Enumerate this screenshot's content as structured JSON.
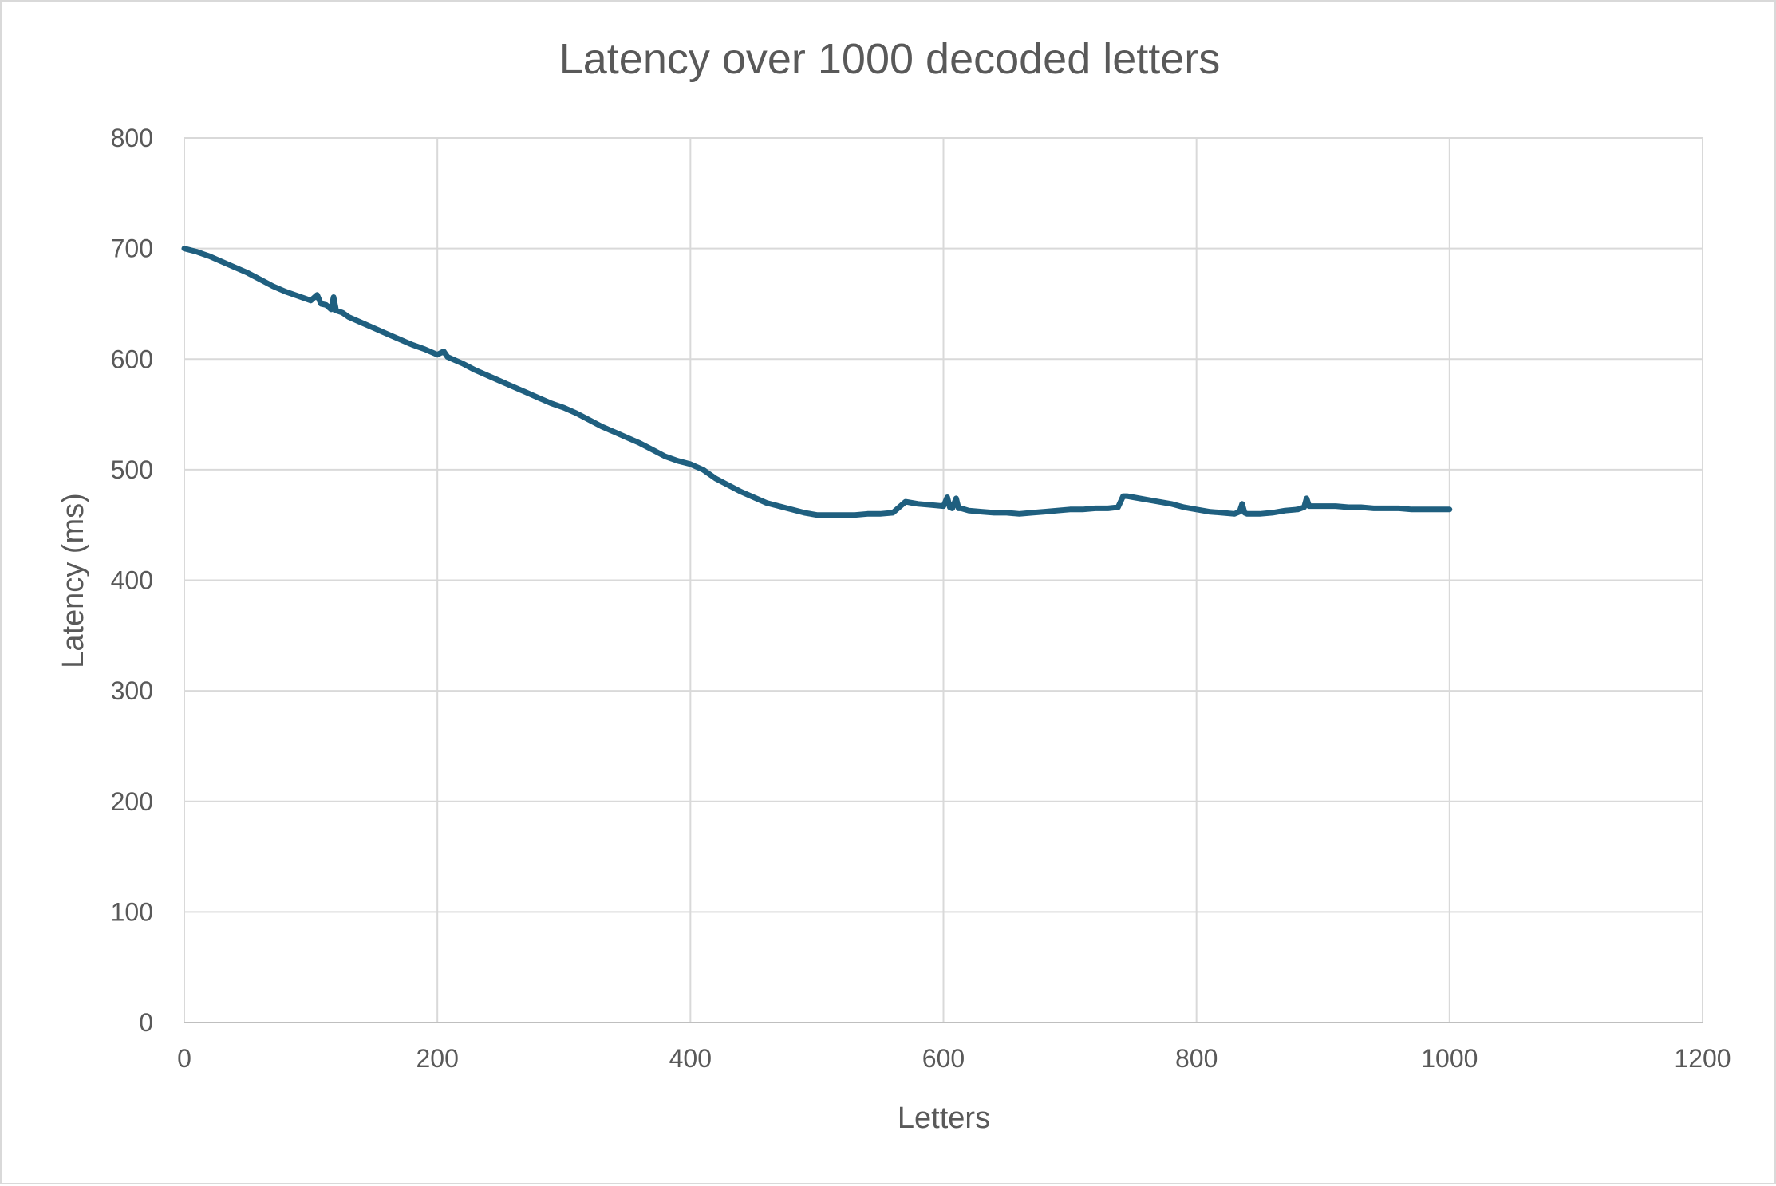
{
  "chart_data": {
    "type": "line",
    "title": "Latency over 1000 decoded letters",
    "xlabel": "Letters",
    "ylabel": "Latency (ms)",
    "xlim": [
      0,
      1200
    ],
    "ylim": [
      0,
      800
    ],
    "x_ticks": [
      0,
      200,
      400,
      600,
      800,
      1000,
      1200
    ],
    "y_ticks": [
      0,
      100,
      200,
      300,
      400,
      500,
      600,
      700,
      800
    ],
    "grid": true,
    "legend": "none",
    "series": [
      {
        "color": "#1f5f7f",
        "x": [
          0,
          10,
          20,
          30,
          40,
          50,
          60,
          70,
          80,
          90,
          100,
          105,
          108,
          112,
          116,
          118,
          120,
          125,
          130,
          140,
          150,
          160,
          170,
          180,
          190,
          200,
          205,
          208,
          212,
          220,
          230,
          240,
          250,
          260,
          270,
          280,
          290,
          300,
          310,
          320,
          330,
          340,
          350,
          360,
          370,
          380,
          390,
          400,
          410,
          420,
          430,
          440,
          450,
          460,
          470,
          480,
          490,
          500,
          510,
          520,
          530,
          540,
          550,
          560,
          565,
          570,
          575,
          580,
          590,
          600,
          603,
          605,
          607,
          610,
          612,
          614,
          620,
          630,
          640,
          650,
          660,
          670,
          680,
          690,
          700,
          710,
          720,
          730,
          738,
          742,
          745,
          750,
          760,
          770,
          780,
          790,
          800,
          810,
          820,
          830,
          834,
          836,
          838,
          840,
          850,
          860,
          870,
          880,
          885,
          887,
          889,
          892,
          900,
          910,
          920,
          930,
          940,
          950,
          960,
          970,
          980,
          990,
          1000
        ],
        "y": [
          700,
          697,
          693,
          688,
          683,
          678,
          672,
          666,
          661,
          657,
          653,
          658,
          650,
          649,
          645,
          656,
          644,
          642,
          638,
          633,
          628,
          623,
          618,
          613,
          609,
          604,
          607,
          602,
          600,
          596,
          590,
          585,
          580,
          575,
          570,
          565,
          560,
          556,
          551,
          545,
          539,
          534,
          529,
          524,
          518,
          512,
          508,
          505,
          500,
          492,
          486,
          480,
          475,
          470,
          467,
          464,
          461,
          459,
          459,
          459,
          459,
          460,
          460,
          461,
          466,
          471,
          470,
          469,
          468,
          467,
          475,
          466,
          465,
          474,
          465,
          465,
          463,
          462,
          461,
          461,
          460,
          461,
          462,
          463,
          464,
          464,
          465,
          465,
          466,
          476,
          476,
          475,
          473,
          471,
          469,
          466,
          464,
          462,
          461,
          460,
          462,
          469,
          461,
          460,
          460,
          461,
          463,
          464,
          466,
          474,
          467,
          467,
          467,
          467,
          466,
          466,
          465,
          465,
          465,
          464,
          464,
          464,
          464
        ]
      }
    ]
  }
}
